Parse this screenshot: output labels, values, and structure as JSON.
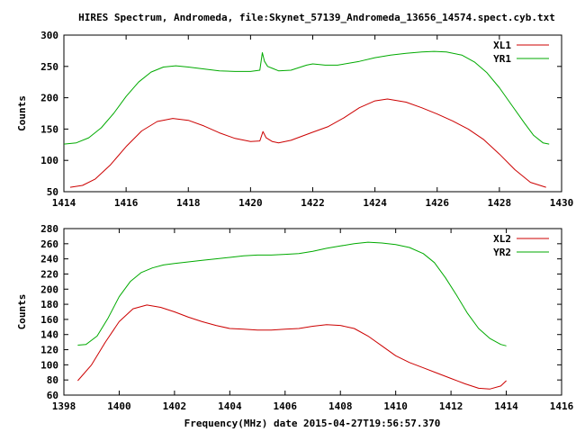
{
  "title": "HIRES Spectrum, Andromeda, file:Skynet_57139_Andromeda_13656_14574.spect.cyb.txt",
  "xlabel": "Frequency(MHz) date 2015-04-27T19:56:57.370",
  "chart_data": [
    {
      "type": "line",
      "title": "HIRES Spectrum, Andromeda, file:Skynet_57139_Andromeda_13656_14574.spect.cyb.txt",
      "xlabel": "",
      "ylabel": "Counts",
      "xlim": [
        1414,
        1430
      ],
      "ylim": [
        50,
        300
      ],
      "xticks": [
        1414,
        1416,
        1418,
        1420,
        1422,
        1424,
        1426,
        1428,
        1430
      ],
      "yticks": [
        50,
        100,
        150,
        200,
        250,
        300
      ],
      "grid": false,
      "legend_position": "top-right",
      "series": [
        {
          "name": "XL1",
          "color": "#cc0000",
          "points": [
            [
              1414.2,
              57
            ],
            [
              1414.6,
              60
            ],
            [
              1415.0,
              70
            ],
            [
              1415.5,
              93
            ],
            [
              1416.0,
              122
            ],
            [
              1416.5,
              147
            ],
            [
              1417.0,
              162
            ],
            [
              1417.5,
              167
            ],
            [
              1418.0,
              164
            ],
            [
              1418.5,
              155
            ],
            [
              1419.0,
              144
            ],
            [
              1419.5,
              135
            ],
            [
              1420.0,
              130
            ],
            [
              1420.3,
              131
            ],
            [
              1420.4,
              146
            ],
            [
              1420.5,
              136
            ],
            [
              1420.7,
              130
            ],
            [
              1420.9,
              128
            ],
            [
              1421.3,
              132
            ],
            [
              1422.0,
              145
            ],
            [
              1422.5,
              154
            ],
            [
              1423.0,
              168
            ],
            [
              1423.5,
              184
            ],
            [
              1424.0,
              195
            ],
            [
              1424.4,
              198
            ],
            [
              1425.0,
              193
            ],
            [
              1425.5,
              184
            ],
            [
              1426.0,
              174
            ],
            [
              1426.5,
              163
            ],
            [
              1427.0,
              150
            ],
            [
              1427.5,
              133
            ],
            [
              1428.0,
              110
            ],
            [
              1428.5,
              85
            ],
            [
              1429.0,
              65
            ],
            [
              1429.5,
              57
            ]
          ]
        },
        {
          "name": "YR1",
          "color": "#00aa00",
          "points": [
            [
              1414.0,
              126
            ],
            [
              1414.4,
              128
            ],
            [
              1414.8,
              136
            ],
            [
              1415.2,
              152
            ],
            [
              1415.6,
              175
            ],
            [
              1416.0,
              202
            ],
            [
              1416.4,
              225
            ],
            [
              1416.8,
              241
            ],
            [
              1417.2,
              249
            ],
            [
              1417.6,
              251
            ],
            [
              1418.0,
              249
            ],
            [
              1418.5,
              246
            ],
            [
              1419.0,
              243
            ],
            [
              1419.5,
              242
            ],
            [
              1420.0,
              242
            ],
            [
              1420.3,
              244
            ],
            [
              1420.38,
              272
            ],
            [
              1420.45,
              258
            ],
            [
              1420.55,
              250
            ],
            [
              1420.7,
              247
            ],
            [
              1420.9,
              243
            ],
            [
              1421.3,
              244
            ],
            [
              1421.8,
              252
            ],
            [
              1422.0,
              254
            ],
            [
              1422.4,
              252
            ],
            [
              1422.8,
              252
            ],
            [
              1423.5,
              258
            ],
            [
              1424.0,
              264
            ],
            [
              1424.5,
              268
            ],
            [
              1425.0,
              271
            ],
            [
              1425.5,
              273
            ],
            [
              1425.9,
              274
            ],
            [
              1426.3,
              273
            ],
            [
              1426.8,
              268
            ],
            [
              1427.2,
              257
            ],
            [
              1427.6,
              240
            ],
            [
              1428.0,
              216
            ],
            [
              1428.4,
              188
            ],
            [
              1428.8,
              160
            ],
            [
              1429.1,
              140
            ],
            [
              1429.4,
              128
            ],
            [
              1429.6,
              126
            ]
          ]
        }
      ]
    },
    {
      "type": "line",
      "title": "",
      "xlabel": "Frequency(MHz) date 2015-04-27T19:56:57.370",
      "ylabel": "Counts",
      "xlim": [
        1398,
        1416
      ],
      "ylim": [
        60,
        280
      ],
      "xticks": [
        1398,
        1400,
        1402,
        1404,
        1406,
        1408,
        1410,
        1412,
        1414,
        1416
      ],
      "yticks": [
        60,
        80,
        100,
        120,
        140,
        160,
        180,
        200,
        220,
        240,
        260,
        280
      ],
      "grid": false,
      "legend_position": "top-right",
      "series": [
        {
          "name": "XL2",
          "color": "#cc0000",
          "points": [
            [
              1398.5,
              79
            ],
            [
              1399.0,
              100
            ],
            [
              1399.5,
              130
            ],
            [
              1400.0,
              157
            ],
            [
              1400.5,
              174
            ],
            [
              1401.0,
              179
            ],
            [
              1401.5,
              176
            ],
            [
              1402.0,
              170
            ],
            [
              1402.5,
              163
            ],
            [
              1403.0,
              157
            ],
            [
              1403.5,
              152
            ],
            [
              1404.0,
              148
            ],
            [
              1404.5,
              147
            ],
            [
              1405.0,
              146
            ],
            [
              1405.5,
              146
            ],
            [
              1406.0,
              147
            ],
            [
              1406.5,
              148
            ],
            [
              1407.0,
              151
            ],
            [
              1407.5,
              153
            ],
            [
              1408.0,
              152
            ],
            [
              1408.5,
              148
            ],
            [
              1409.0,
              138
            ],
            [
              1409.5,
              125
            ],
            [
              1410.0,
              112
            ],
            [
              1410.5,
              103
            ],
            [
              1411.0,
              96
            ],
            [
              1411.5,
              89
            ],
            [
              1412.0,
              82
            ],
            [
              1412.5,
              75
            ],
            [
              1413.0,
              69
            ],
            [
              1413.4,
              68
            ],
            [
              1413.8,
              72
            ],
            [
              1414.0,
              79
            ]
          ]
        },
        {
          "name": "YR2",
          "color": "#00aa00",
          "points": [
            [
              1398.5,
              126
            ],
            [
              1398.8,
              127
            ],
            [
              1399.2,
              138
            ],
            [
              1399.6,
              162
            ],
            [
              1400.0,
              190
            ],
            [
              1400.4,
              210
            ],
            [
              1400.8,
              222
            ],
            [
              1401.2,
              228
            ],
            [
              1401.6,
              232
            ],
            [
              1402.0,
              234
            ],
            [
              1402.5,
              236
            ],
            [
              1403.0,
              238
            ],
            [
              1403.5,
              240
            ],
            [
              1404.0,
              242
            ],
            [
              1404.5,
              244
            ],
            [
              1405.0,
              245
            ],
            [
              1405.5,
              245
            ],
            [
              1406.0,
              246
            ],
            [
              1406.5,
              247
            ],
            [
              1407.0,
              250
            ],
            [
              1407.5,
              254
            ],
            [
              1408.0,
              257
            ],
            [
              1408.5,
              260
            ],
            [
              1409.0,
              262
            ],
            [
              1409.5,
              261
            ],
            [
              1410.0,
              259
            ],
            [
              1410.5,
              255
            ],
            [
              1411.0,
              247
            ],
            [
              1411.4,
              235
            ],
            [
              1411.8,
              215
            ],
            [
              1412.2,
              192
            ],
            [
              1412.6,
              168
            ],
            [
              1413.0,
              148
            ],
            [
              1413.4,
              135
            ],
            [
              1413.8,
              127
            ],
            [
              1414.0,
              125
            ]
          ]
        }
      ]
    }
  ]
}
